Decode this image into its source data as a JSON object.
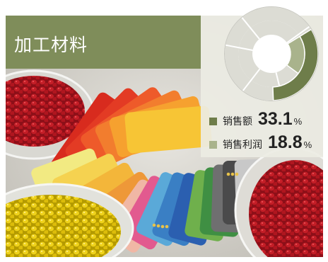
{
  "title": "加工材料",
  "colors": {
    "band": "#7f8d5a",
    "sales_series": "#6e7d4a",
    "profit_series": "#a9b38c"
  },
  "stats": [
    {
      "label": "销售额",
      "value": "33.1",
      "unit": "%",
      "fraction": 0.331
    },
    {
      "label": "销售利润",
      "value": "18.8",
      "unit": "%",
      "fraction": 0.188
    }
  ],
  "photo_subject": "plastic pellets and color swatch fan"
}
